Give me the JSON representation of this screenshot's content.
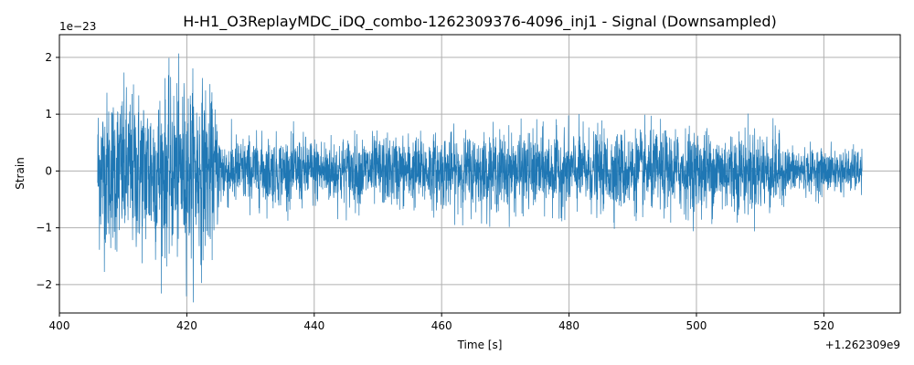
{
  "chart_data": {
    "type": "line",
    "title": "H-H1_O3ReplayMDC_iDQ_combo-1262309376-4096_inj1 - Signal (Downsampled)",
    "xlabel": "Time [s]",
    "ylabel": "Strain",
    "x_offset_label": "+1.262309e9",
    "y_scale_label": "1e−23",
    "xlim": [
      400,
      532
    ],
    "ylim": [
      -2.5,
      2.4
    ],
    "x_ticks": [
      400,
      420,
      440,
      460,
      480,
      500,
      520
    ],
    "x_tick_labels": [
      "400",
      "420",
      "440",
      "460",
      "480",
      "500",
      "520"
    ],
    "y_ticks": [
      -2,
      -1,
      0,
      1,
      2
    ],
    "y_tick_labels": [
      "−2",
      "−1",
      "0",
      "1",
      "2"
    ],
    "grid": true,
    "series": [
      {
        "color": "#1f77b4",
        "x_range": [
          406,
          526
        ],
        "envelope": [
          {
            "x": 406,
            "amp": 1.6
          },
          {
            "x": 410,
            "amp": 1.65
          },
          {
            "x": 414,
            "amp": 1.7
          },
          {
            "x": 418,
            "amp": 1.75
          },
          {
            "x": 421,
            "amp": 1.85
          },
          {
            "x": 423,
            "amp": 1.75
          },
          {
            "x": 424.5,
            "amp": 1.3
          },
          {
            "x": 425.5,
            "amp": 0.75
          },
          {
            "x": 430,
            "amp": 0.7
          },
          {
            "x": 440,
            "amp": 0.7
          },
          {
            "x": 450,
            "amp": 0.72
          },
          {
            "x": 460,
            "amp": 0.75
          },
          {
            "x": 470,
            "amp": 0.8
          },
          {
            "x": 480,
            "amp": 0.8
          },
          {
            "x": 490,
            "amp": 0.82
          },
          {
            "x": 500,
            "amp": 0.85
          },
          {
            "x": 510,
            "amp": 0.85
          },
          {
            "x": 512.5,
            "amp": 0.8
          },
          {
            "x": 514,
            "amp": 0.5
          },
          {
            "x": 520,
            "amp": 0.45
          },
          {
            "x": 526,
            "amp": 0.45
          }
        ]
      }
    ]
  }
}
